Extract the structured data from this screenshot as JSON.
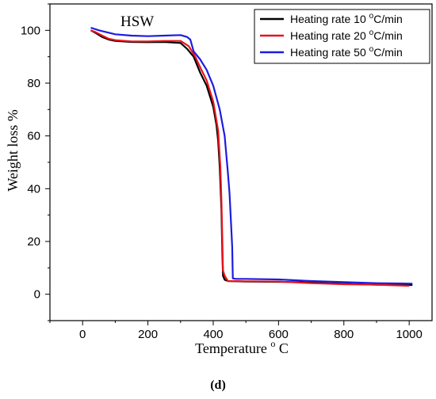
{
  "caption": "(d)",
  "colors": {
    "axis": "#000000",
    "series": [
      "#000000",
      "#e8141b",
      "#1c1ce0"
    ]
  },
  "chart_data": {
    "type": "line",
    "title": "HSW",
    "xlabel": "Temperature",
    "xlabel_unit_super": "o",
    "xlabel_unit": "C",
    "ylabel": "Weight loss %",
    "xlim": [
      -100,
      1070
    ],
    "ylim": [
      -10,
      110
    ],
    "xticks": [
      0,
      200,
      400,
      600,
      800,
      1000
    ],
    "yticks": [
      0,
      20,
      40,
      60,
      80,
      100
    ],
    "grid": false,
    "legend_position": "top-right",
    "series": [
      {
        "name": "Heating rate 10 °C/min",
        "name_prefix": "Heating rate 10 ",
        "name_super": "o",
        "name_suffix": "C/min",
        "points": [
          [
            25,
            100
          ],
          [
            40,
            99
          ],
          [
            60,
            97.5
          ],
          [
            80,
            96.5
          ],
          [
            100,
            96
          ],
          [
            150,
            95.6
          ],
          [
            200,
            95.5
          ],
          [
            250,
            95.6
          ],
          [
            300,
            95.2
          ],
          [
            320,
            93
          ],
          [
            340,
            90
          ],
          [
            360,
            84
          ],
          [
            380,
            79
          ],
          [
            400,
            71
          ],
          [
            410,
            64
          ],
          [
            415,
            58
          ],
          [
            420,
            48
          ],
          [
            425,
            32
          ],
          [
            428,
            15
          ],
          [
            430,
            7
          ],
          [
            435,
            5.5
          ],
          [
            445,
            5
          ],
          [
            500,
            4.8
          ],
          [
            600,
            4.7
          ],
          [
            650,
            4.6
          ],
          [
            800,
            4
          ],
          [
            900,
            3.6
          ],
          [
            1010,
            3.5
          ]
        ]
      },
      {
        "name": "Heating rate 20 °C/min",
        "name_prefix": "Heating rate 20 ",
        "name_super": "o",
        "name_suffix": "C/min",
        "points": [
          [
            25,
            100
          ],
          [
            40,
            99.3
          ],
          [
            60,
            98
          ],
          [
            80,
            96.8
          ],
          [
            100,
            96.3
          ],
          [
            150,
            95.8
          ],
          [
            200,
            95.8
          ],
          [
            250,
            96
          ],
          [
            300,
            96
          ],
          [
            325,
            94
          ],
          [
            345,
            90
          ],
          [
            360,
            86
          ],
          [
            380,
            81
          ],
          [
            400,
            73
          ],
          [
            415,
            62
          ],
          [
            422,
            48
          ],
          [
            425,
            36
          ],
          [
            428,
            20
          ],
          [
            430,
            9
          ],
          [
            435,
            7
          ],
          [
            445,
            5
          ],
          [
            500,
            4.9
          ],
          [
            600,
            4.8
          ],
          [
            700,
            4.2
          ],
          [
            800,
            3.8
          ],
          [
            900,
            3.6
          ],
          [
            1000,
            3.2
          ]
        ]
      },
      {
        "name": "Heating rate 50 °C/min",
        "name_prefix": "Heating rate 50 ",
        "name_super": "o",
        "name_suffix": "C/min",
        "points": [
          [
            25,
            101
          ],
          [
            50,
            100
          ],
          [
            100,
            98.5
          ],
          [
            150,
            98
          ],
          [
            200,
            97.8
          ],
          [
            250,
            98
          ],
          [
            300,
            98.2
          ],
          [
            320,
            97.5
          ],
          [
            330,
            96.5
          ],
          [
            340,
            92
          ],
          [
            360,
            89
          ],
          [
            380,
            85
          ],
          [
            400,
            79
          ],
          [
            420,
            70
          ],
          [
            435,
            60
          ],
          [
            445,
            46
          ],
          [
            450,
            38
          ],
          [
            455,
            26
          ],
          [
            458,
            18
          ],
          [
            460,
            6
          ],
          [
            470,
            5.8
          ],
          [
            500,
            5.8
          ],
          [
            600,
            5.6
          ],
          [
            700,
            5
          ],
          [
            800,
            4.6
          ],
          [
            900,
            4.2
          ],
          [
            1010,
            4
          ]
        ]
      }
    ]
  }
}
